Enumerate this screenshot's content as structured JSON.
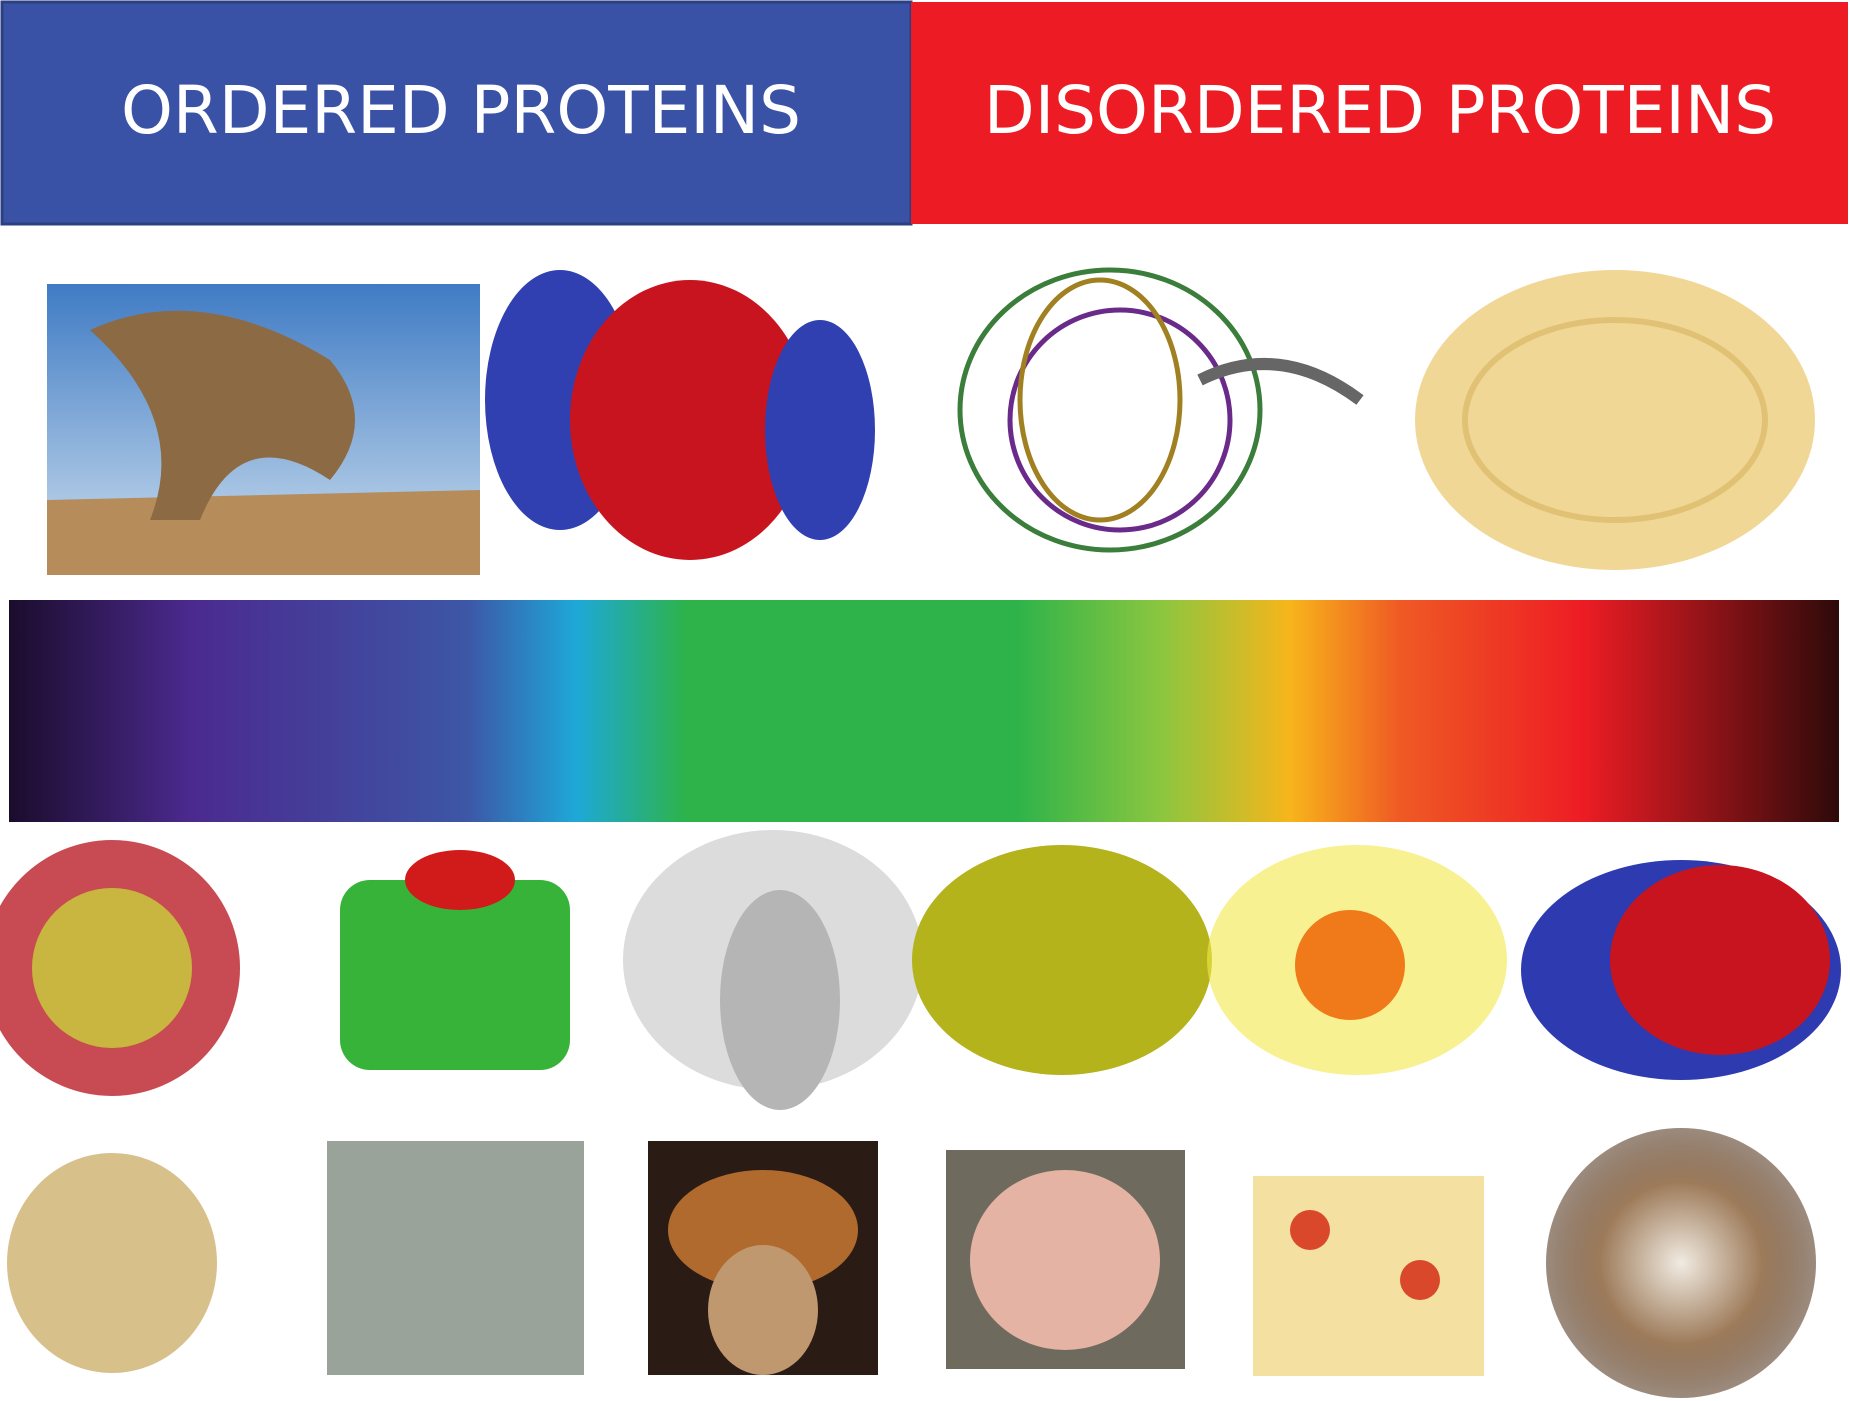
{
  "header": {
    "left": "ORDERED PROTEINS",
    "right": "DISORDERED PROTEINS"
  }
}
